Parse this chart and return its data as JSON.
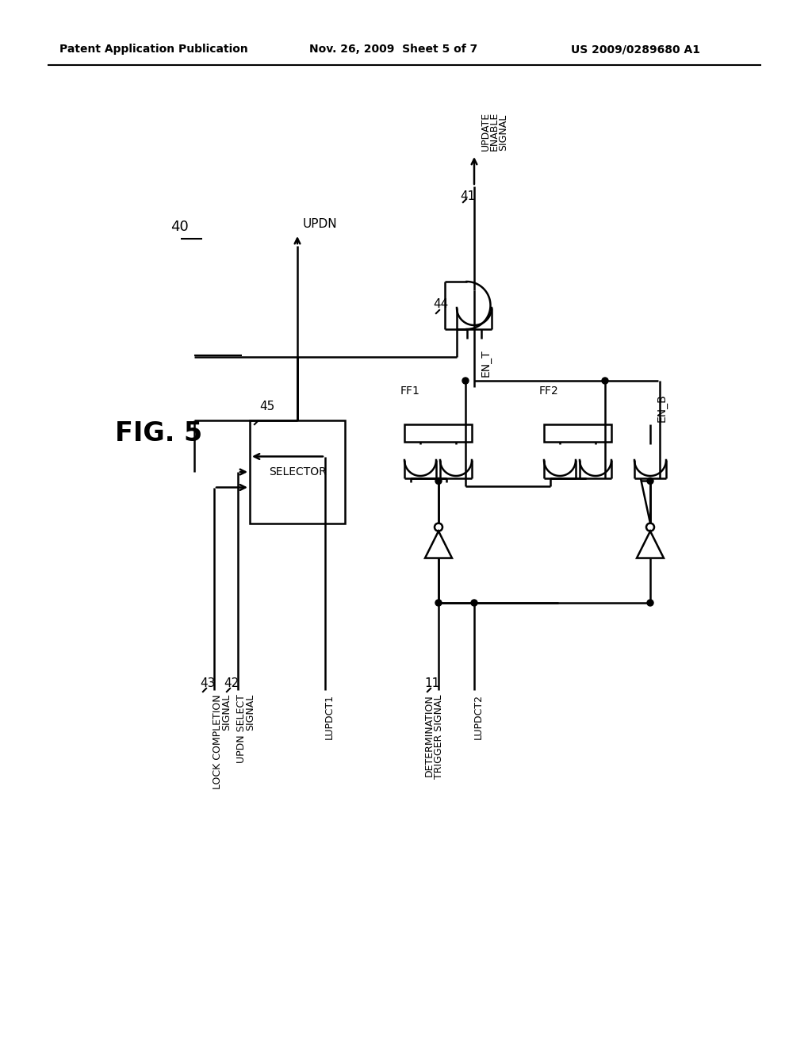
{
  "bg_color": "#ffffff",
  "header_left": "Patent Application Publication",
  "header_mid": "Nov. 26, 2009  Sheet 5 of 7",
  "header_right": "US 2009/0289680 A1",
  "fig_label": "FIG. 5"
}
